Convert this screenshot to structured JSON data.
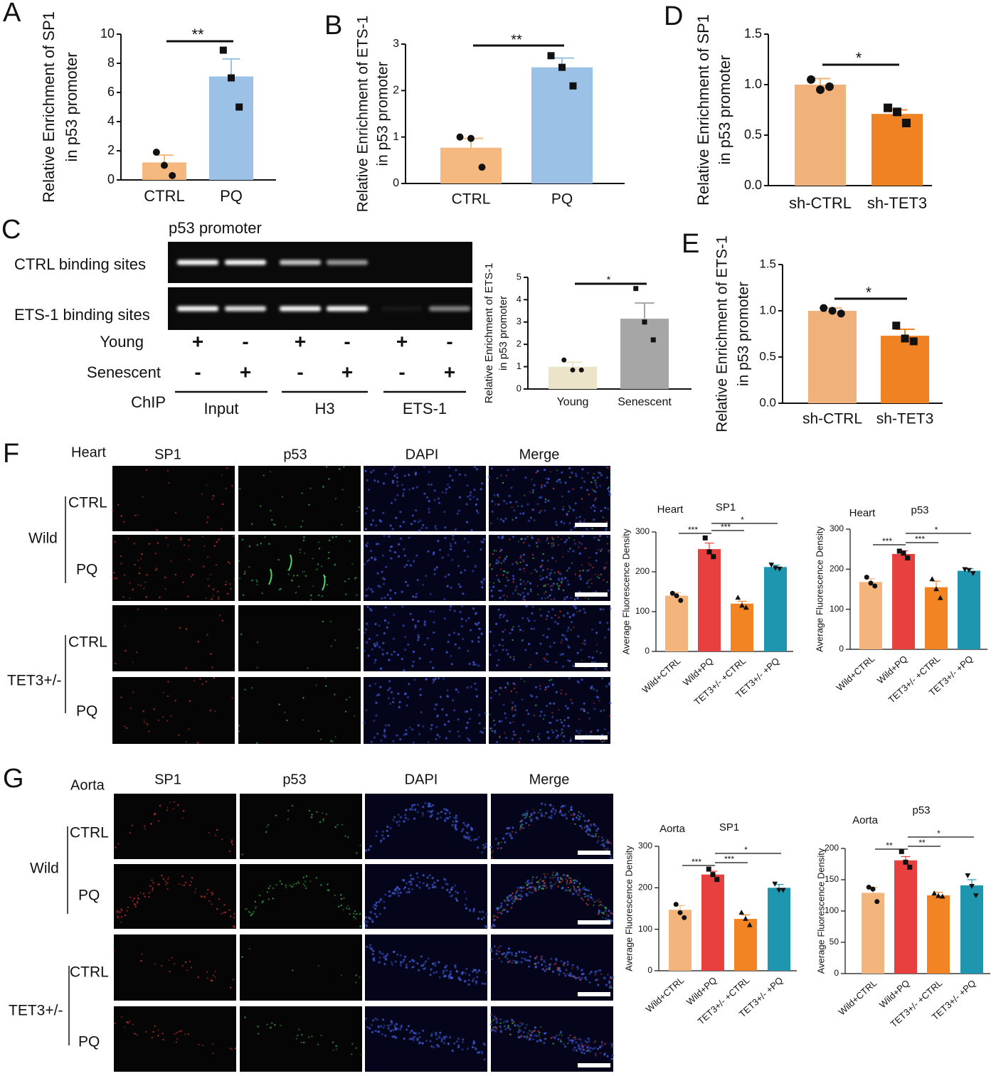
{
  "panel_labels": [
    "A",
    "B",
    "C",
    "D",
    "E",
    "F",
    "G"
  ],
  "chart_data": [
    {
      "type": "bar",
      "ylabel": [
        "Relative Enrichment of SP1",
        "in p53 promoter"
      ],
      "categories": [
        "CTRL",
        "PQ"
      ],
      "values": [
        1.2,
        7.1
      ],
      "errors": [
        0.5,
        1.2
      ],
      "points": [
        [
          1.9,
          1.0,
          0.3
        ],
        [
          8.9,
          7.0,
          5.0
        ]
      ],
      "colors": [
        "#f5b87e",
        "#9bc2e6"
      ],
      "markers": [
        "circle",
        "square"
      ],
      "ylim": [
        0,
        10
      ],
      "yticks": [
        0,
        2,
        4,
        6,
        8,
        10
      ],
      "significance": [
        {
          "label": "**",
          "between": [
            "CTRL",
            "PQ"
          ]
        }
      ]
    },
    {
      "type": "bar",
      "ylabel": [
        "Relative Enrichment of ETS-1",
        "in p53 promoter"
      ],
      "categories": [
        "CTRL",
        "PQ"
      ],
      "values": [
        0.77,
        2.5
      ],
      "errors": [
        0.2,
        0.2
      ],
      "points": [
        [
          1.0,
          0.97,
          0.35
        ],
        [
          2.75,
          2.5,
          2.1
        ]
      ],
      "colors": [
        "#f5b87e",
        "#9bc2e6"
      ],
      "markers": [
        "circle",
        "square"
      ],
      "ylim": [
        0,
        3
      ],
      "yticks": [
        0,
        1,
        2,
        3
      ],
      "significance": [
        {
          "label": "**",
          "between": [
            "CTRL",
            "PQ"
          ]
        }
      ]
    },
    {
      "type": "bar",
      "ylabel": [
        "Relative Enrichment of SP1",
        "in p53 promoter"
      ],
      "categories": [
        "sh-CTRL",
        "sh-TET3"
      ],
      "values": [
        1.0,
        0.71
      ],
      "errors": [
        0.06,
        0.04
      ],
      "points": [
        [
          1.05,
          0.95,
          0.98
        ],
        [
          0.77,
          0.73,
          0.62
        ]
      ],
      "colors": [
        "#f0b27a",
        "#f08224"
      ],
      "markers": [
        "circle",
        "square"
      ],
      "ylim": [
        0,
        1.5
      ],
      "yticks": [
        {
          "value": 0,
          "label": "0.0"
        },
        0.5,
        {
          "value": 1,
          "label": "1.0"
        },
        1.5
      ],
      "significance": [
        {
          "label": "*",
          "between": [
            "sh-CTRL",
            "sh-TET3"
          ]
        }
      ]
    },
    {
      "type": "bar",
      "ylabel": [
        "Relative Enrichment of ETS-1",
        "in p53 promoter"
      ],
      "categories": [
        "sh-CTRL",
        "sh-TET3"
      ],
      "values": [
        1.0,
        0.73
      ],
      "errors": [
        0.03,
        0.07
      ],
      "points": [
        [
          1.03,
          1.0,
          0.97
        ],
        [
          0.84,
          0.7,
          0.67
        ]
      ],
      "colors": [
        "#f0b27a",
        "#f08224"
      ],
      "markers": [
        "circle",
        "square"
      ],
      "ylim": [
        0,
        1.5
      ],
      "yticks": [
        {
          "value": 0,
          "label": "0.0"
        },
        0.5,
        {
          "value": 1,
          "label": "1.0"
        },
        1.5
      ],
      "significance": [
        {
          "label": "*",
          "between": [
            "sh-CTRL",
            "sh-TET3"
          ]
        }
      ]
    },
    {
      "type": "bar",
      "ylabel": [
        "Relative Enrichment of ETS-1",
        "in p53 promoter"
      ],
      "categories": [
        "Young",
        "Senescent"
      ],
      "values": [
        1.0,
        3.15
      ],
      "errors": [
        0.2,
        0.7
      ],
      "points": [
        [
          1.3,
          0.85,
          0.85
        ],
        [
          4.5,
          3.0,
          2.2
        ]
      ],
      "colors": [
        "#ece4c8",
        "#a6a6a6"
      ],
      "markers": [
        "circle",
        "square"
      ],
      "ylim": [
        0,
        5
      ],
      "yticks": [
        0,
        1,
        2,
        3,
        4,
        5
      ],
      "significance": [
        {
          "label": "*",
          "between": [
            "Young",
            "Senescent"
          ]
        }
      ]
    },
    {
      "type": "bar",
      "tissue": "Heart",
      "title": "SP1",
      "ylabel": [
        "Average Fluorescence Density"
      ],
      "categories": [
        "Wild+CTRL",
        "Wild+PQ",
        "TET3+/- +CTRL",
        "TET3+/- +PQ"
      ],
      "values": [
        140,
        257,
        120,
        212
      ],
      "errors": [
        8,
        15,
        6,
        5
      ],
      "points": [
        [
          146,
          140,
          128
        ],
        [
          285,
          250,
          238
        ],
        [
          135,
          115,
          110
        ],
        [
          218,
          210,
          208
        ]
      ],
      "colors": [
        "#f4b57d",
        "#e8403f",
        "#f28424",
        "#1f96b0"
      ],
      "markers": [
        "circle",
        "square",
        "triangle",
        "triangle-down"
      ],
      "ylim": [
        0,
        300
      ],
      "yticks": [
        0,
        100,
        200,
        300
      ],
      "significance": [
        {
          "label": "***",
          "between": [
            "Wild+CTRL",
            "Wild+PQ"
          ]
        },
        {
          "label": "***",
          "between": [
            "Wild+PQ",
            "TET3+/- +CTRL"
          ]
        },
        {
          "label": "*",
          "between": [
            "Wild+PQ",
            "TET3+/- +PQ"
          ]
        }
      ]
    },
    {
      "type": "bar",
      "tissue": "Heart",
      "title": "p53",
      "ylabel": [
        "Average Fluorescence Density"
      ],
      "categories": [
        "Wild+CTRL",
        "Wild+PQ",
        "TET3+/- +CTRL",
        "TET3+/- +PQ"
      ],
      "values": [
        168,
        238,
        155,
        196
      ],
      "errors": [
        8,
        8,
        15,
        5
      ],
      "points": [
        [
          180,
          165,
          158
        ],
        [
          245,
          240,
          228
        ],
        [
          175,
          150,
          128
        ],
        [
          200,
          198,
          190
        ]
      ],
      "colors": [
        "#f4b57d",
        "#e8403f",
        "#f28424",
        "#1f96b0"
      ],
      "markers": [
        "circle",
        "square",
        "triangle",
        "triangle-down"
      ],
      "ylim": [
        0,
        300
      ],
      "yticks": [
        0,
        100,
        200,
        300
      ],
      "significance": [
        {
          "label": "***",
          "between": [
            "Wild+CTRL",
            "Wild+PQ"
          ]
        },
        {
          "label": "***",
          "between": [
            "Wild+PQ",
            "TET3+/- +CTRL"
          ]
        },
        {
          "label": "*",
          "between": [
            "Wild+PQ",
            "TET3+/- +PQ"
          ]
        }
      ]
    },
    {
      "type": "bar",
      "tissue": "Aorta",
      "title": "SP1",
      "ylabel": [
        "Average Fluorescence Density"
      ],
      "categories": [
        "Wild+CTRL",
        "Wild+PQ",
        "TET3+/- +CTRL",
        "TET3+/- +PQ"
      ],
      "values": [
        147,
        232,
        125,
        200
      ],
      "errors": [
        10,
        8,
        10,
        8
      ],
      "points": [
        [
          160,
          140,
          128
        ],
        [
          245,
          232,
          220
        ],
        [
          140,
          125,
          110
        ],
        [
          210,
          195,
          195
        ]
      ],
      "colors": [
        "#f4b57d",
        "#e8403f",
        "#f28424",
        "#1f96b0"
      ],
      "markers": [
        "circle",
        "square",
        "triangle",
        "triangle-down"
      ],
      "ylim": [
        0,
        300
      ],
      "yticks": [
        0,
        100,
        200,
        300
      ],
      "significance": [
        {
          "label": "***",
          "between": [
            "Wild+CTRL",
            "Wild+PQ"
          ]
        },
        {
          "label": "***",
          "between": [
            "Wild+PQ",
            "TET3+/- +CTRL"
          ]
        },
        {
          "label": "*",
          "between": [
            "Wild+PQ",
            "TET3+/- +PQ"
          ]
        }
      ]
    },
    {
      "type": "bar",
      "tissue": "Aorta",
      "title": "p53",
      "ylabel": [
        "Average Fluorescence Density"
      ],
      "categories": [
        "Wild+CTRL",
        "Wild+PQ",
        "TET3+/- +CTRL",
        "TET3+/- +PQ"
      ],
      "values": [
        129,
        181,
        125,
        141
      ],
      "errors": [
        9,
        6,
        5,
        9
      ],
      "points": [
        [
          138,
          135,
          115
        ],
        [
          195,
          178,
          170
        ],
        [
          128,
          124,
          123
        ],
        [
          157,
          140,
          125
        ]
      ],
      "colors": [
        "#f4b57d",
        "#e8403f",
        "#f28424",
        "#1f96b0"
      ],
      "markers": [
        "circle",
        "square",
        "triangle",
        "triangle-down"
      ],
      "ylim": [
        0,
        200
      ],
      "yticks": [
        0,
        50,
        100,
        150,
        200
      ],
      "significance": [
        {
          "label": "**",
          "between": [
            "Wild+CTRL",
            "Wild+PQ"
          ]
        },
        {
          "label": "**",
          "between": [
            "Wild+PQ",
            "TET3+/- +CTRL"
          ]
        },
        {
          "label": "*",
          "between": [
            "Wild+PQ",
            "TET3+/- +PQ"
          ]
        }
      ]
    }
  ],
  "gel": {
    "title": "p53 promoter",
    "rows": [
      "CTRL binding sites",
      "ETS-1 binding sites"
    ],
    "conditions": [
      {
        "name": "Young",
        "signs": [
          "+",
          "-",
          "+",
          "-",
          "+",
          "-"
        ]
      },
      {
        "name": "Senescent",
        "signs": [
          "-",
          "+",
          "-",
          "+",
          "-",
          "+"
        ]
      }
    ],
    "chip_label": "ChIP",
    "groups": [
      "Input",
      "H3",
      "ETS-1"
    ]
  },
  "heart_images": {
    "tissue": "Heart",
    "columns": [
      "SP1",
      "p53",
      "DAPI",
      "Merge"
    ],
    "groups": [
      {
        "name": "Wild",
        "rows": [
          "CTRL",
          "PQ"
        ]
      },
      {
        "name": "TET3+/-",
        "rows": [
          "CTRL",
          "PQ"
        ]
      }
    ]
  },
  "aorta_images": {
    "tissue": "Aorta",
    "columns": [
      "SP1",
      "p53",
      "DAPI",
      "Merge"
    ],
    "groups": [
      {
        "name": "Wild",
        "rows": [
          "CTRL",
          "PQ"
        ]
      },
      {
        "name": "TET3+/-",
        "rows": [
          "CTRL",
          "PQ"
        ]
      }
    ]
  }
}
